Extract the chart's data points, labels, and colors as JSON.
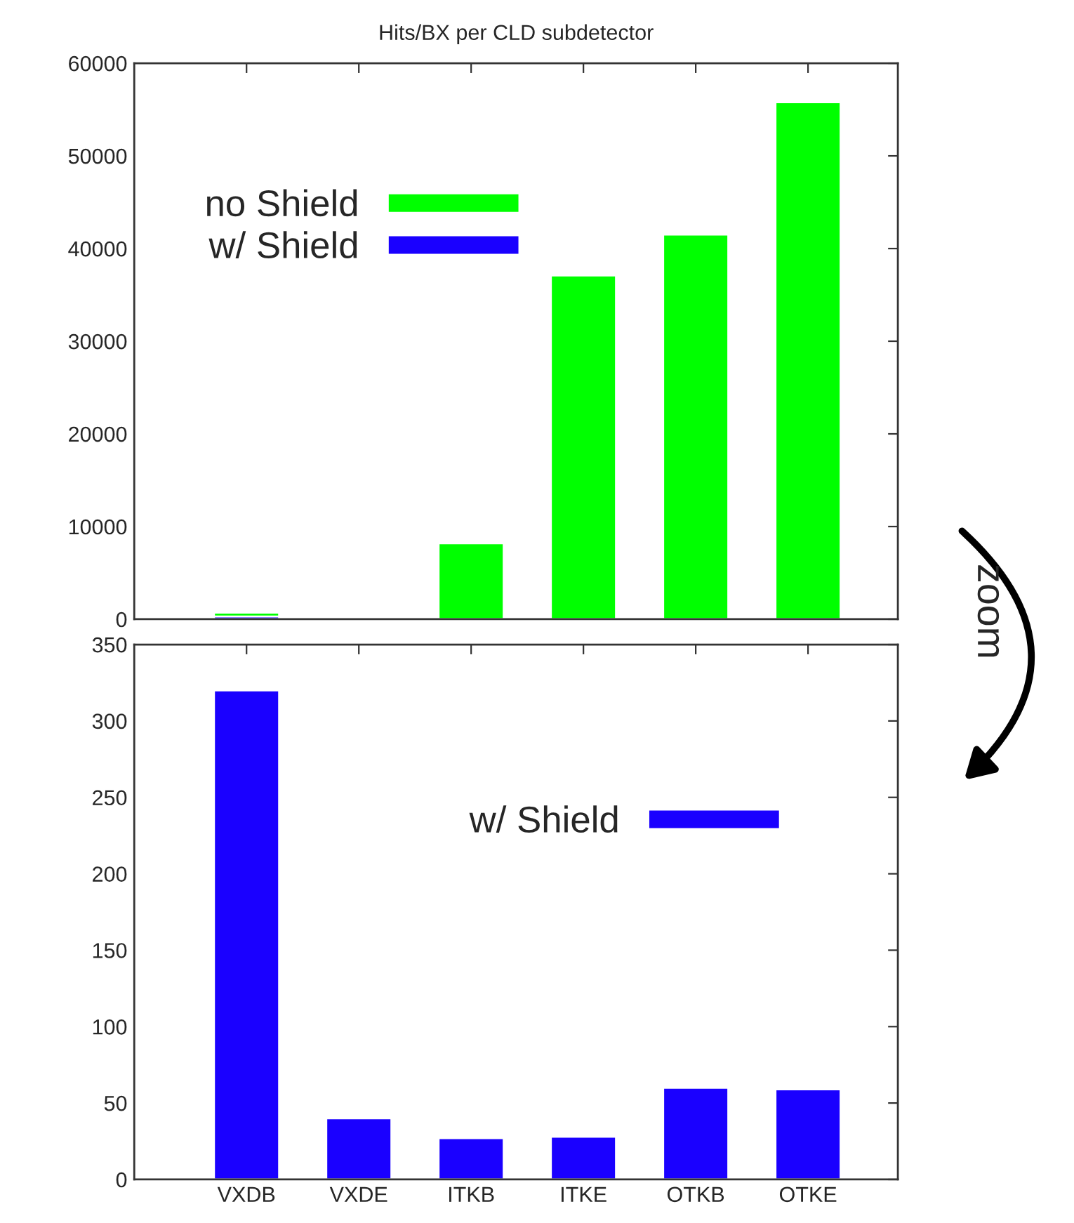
{
  "chart_data": [
    {
      "type": "bar",
      "title": "Hits/BX per CLD subdetector",
      "categories": [
        null,
        null,
        null,
        null,
        null,
        null
      ],
      "series": [
        {
          "name": "no Shield",
          "color": "#00ff00",
          "values": [
            700,
            null,
            8200,
            37100,
            41500,
            55800
          ]
        },
        {
          "name": "w/ Shield",
          "color": "#1a00ff",
          "values": [
            300,
            null,
            null,
            null,
            null,
            null
          ]
        }
      ],
      "ylim": [
        0,
        60000
      ],
      "yticks": [
        0,
        10000,
        20000,
        30000,
        40000,
        50000,
        60000
      ],
      "tick_labels": "y",
      "legend": "top left"
    },
    {
      "type": "bar",
      "categories": [
        "VXDB",
        "VXDE",
        "ITKB",
        "ITKE",
        "OTKB",
        "OTKE"
      ],
      "series": [
        {
          "name": "w/ Shield",
          "color": "#1a00ff",
          "values": [
            320,
            40,
            27,
            28,
            60,
            59
          ]
        }
      ],
      "ylim": [
        0,
        350
      ],
      "yticks": [
        0,
        50,
        100,
        150,
        200,
        250,
        300,
        350
      ],
      "legend": "top right",
      "annotations": [
        "zoom"
      ]
    }
  ]
}
